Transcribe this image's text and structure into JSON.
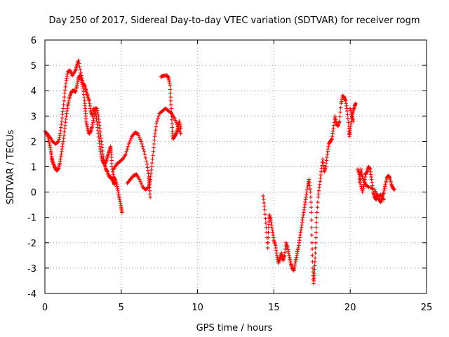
{
  "chart_data": {
    "type": "scatter",
    "title": "Day 250 of 2017, Sidereal Day-to-day VTEC variation (SDTVAR) for receiver rogm",
    "xlabel": "GPS time / hours",
    "ylabel": "SDTVAR / TECUs",
    "xlim": [
      0,
      25
    ],
    "ylim": [
      -4,
      6
    ],
    "grid": true,
    "marker": "+",
    "x_ticks": [
      0,
      5,
      10,
      15,
      20,
      25
    ],
    "x_tick_labels": [
      "0",
      "5",
      "10",
      "15",
      "20",
      "25"
    ],
    "y_ticks": [
      -4,
      -3,
      -2,
      -1,
      0,
      1,
      2,
      3,
      4,
      5,
      6
    ],
    "y_tick_labels": [
      "-4",
      "-3",
      "-2",
      "-1",
      "0",
      "1",
      "2",
      "3",
      "4",
      "5",
      "6"
    ],
    "series": [
      {
        "name": "rogm",
        "color": "#ff0000",
        "segments": [
          [
            [
              0.0,
              2.4
            ],
            [
              0.3,
              2.2
            ],
            [
              0.5,
              2.0
            ],
            [
              0.7,
              1.9
            ],
            [
              0.9,
              2.0
            ],
            [
              1.0,
              2.3
            ],
            [
              1.1,
              2.8
            ],
            [
              1.2,
              3.3
            ],
            [
              1.3,
              3.9
            ],
            [
              1.4,
              4.4
            ],
            [
              1.5,
              4.75
            ],
            [
              1.65,
              4.8
            ],
            [
              1.8,
              4.6
            ],
            [
              2.0,
              4.8
            ],
            [
              2.1,
              5.0
            ],
            [
              2.2,
              5.2
            ],
            [
              2.35,
              4.7
            ],
            [
              2.5,
              4.3
            ],
            [
              2.6,
              4.2
            ],
            [
              2.7,
              4.0
            ],
            [
              2.8,
              3.8
            ],
            [
              2.9,
              3.6
            ],
            [
              3.0,
              3.2
            ],
            [
              3.1,
              3.0
            ],
            [
              3.2,
              3.3
            ],
            [
              3.3,
              3.2
            ],
            [
              3.4,
              2.8
            ],
            [
              3.5,
              2.3
            ],
            [
              3.6,
              1.8
            ],
            [
              3.7,
              1.4
            ],
            [
              3.8,
              1.2
            ],
            [
              3.9,
              1.1
            ],
            [
              4.0,
              1.2
            ],
            [
              4.1,
              1.4
            ],
            [
              4.2,
              1.6
            ],
            [
              4.3,
              1.8
            ],
            [
              4.35,
              1.5
            ],
            [
              4.4,
              1.0
            ],
            [
              4.5,
              0.6
            ],
            [
              4.6,
              0.5
            ],
            [
              4.7,
              0.3
            ],
            [
              4.8,
              0.0
            ],
            [
              4.9,
              -0.3
            ],
            [
              5.0,
              -0.6
            ],
            [
              5.05,
              -0.8
            ]
          ],
          [
            [
              0.1,
              2.35
            ],
            [
              0.2,
              2.2
            ],
            [
              0.3,
              1.9
            ],
            [
              0.4,
              1.6
            ],
            [
              0.45,
              1.35
            ],
            [
              0.5,
              1.2
            ],
            [
              0.6,
              1.05
            ],
            [
              0.7,
              0.9
            ],
            [
              0.8,
              0.85
            ],
            [
              0.9,
              0.95
            ],
            [
              1.0,
              1.2
            ],
            [
              1.1,
              1.6
            ],
            [
              1.2,
              2.0
            ],
            [
              1.3,
              2.5
            ],
            [
              1.4,
              3.0
            ],
            [
              1.5,
              3.4
            ],
            [
              1.6,
              3.7
            ],
            [
              1.7,
              3.9
            ],
            [
              1.8,
              4.0
            ],
            [
              1.9,
              4.0
            ],
            [
              2.0,
              3.95
            ],
            [
              2.1,
              4.2
            ],
            [
              2.2,
              4.5
            ],
            [
              2.3,
              4.6
            ],
            [
              2.4,
              4.4
            ],
            [
              2.5,
              4.1
            ],
            [
              2.6,
              3.6
            ],
            [
              2.65,
              3.2
            ],
            [
              2.7,
              2.8
            ],
            [
              2.8,
              2.5
            ],
            [
              2.9,
              2.3
            ],
            [
              3.0,
              2.4
            ],
            [
              3.1,
              2.6
            ],
            [
              3.2,
              2.9
            ],
            [
              3.3,
              3.3
            ],
            [
              3.4,
              3.3
            ],
            [
              3.5,
              3.0
            ],
            [
              3.6,
              2.5
            ],
            [
              3.7,
              2.0
            ],
            [
              3.8,
              1.5
            ],
            [
              3.9,
              1.1
            ],
            [
              4.0,
              0.9
            ],
            [
              4.1,
              0.8
            ],
            [
              4.2,
              0.6
            ],
            [
              4.3,
              0.6
            ],
            [
              4.4,
              0.5
            ],
            [
              4.5,
              0.4
            ],
            [
              4.55,
              0.3
            ]
          ],
          [
            [
              4.5,
              0.9
            ],
            [
              4.7,
              1.1
            ],
            [
              4.9,
              1.2
            ],
            [
              5.1,
              1.3
            ],
            [
              5.3,
              1.5
            ],
            [
              5.5,
              1.9
            ],
            [
              5.7,
              2.2
            ],
            [
              5.9,
              2.35
            ],
            [
              6.1,
              2.3
            ],
            [
              6.3,
              2.0
            ],
            [
              6.5,
              1.6
            ],
            [
              6.7,
              1.1
            ],
            [
              6.8,
              0.6
            ],
            [
              6.85,
              0.3
            ],
            [
              6.9,
              -0.2
            ]
          ],
          [
            [
              5.4,
              0.35
            ],
            [
              5.6,
              0.5
            ],
            [
              5.8,
              0.65
            ],
            [
              6.0,
              0.7
            ],
            [
              6.2,
              0.5
            ],
            [
              6.4,
              0.2
            ],
            [
              6.6,
              0.1
            ],
            [
              6.8,
              0.2
            ],
            [
              6.9,
              0.5
            ],
            [
              7.0,
              1.0
            ],
            [
              7.1,
              1.6
            ],
            [
              7.2,
              2.2
            ],
            [
              7.3,
              2.7
            ],
            [
              7.5,
              3.1
            ],
            [
              7.7,
              3.2
            ],
            [
              7.9,
              3.3
            ],
            [
              8.1,
              3.2
            ],
            [
              8.3,
              3.1
            ],
            [
              8.5,
              2.9
            ],
            [
              8.7,
              2.6
            ],
            [
              8.9,
              2.3
            ]
          ],
          [
            [
              7.6,
              4.55
            ],
            [
              7.8,
              4.6
            ],
            [
              8.0,
              4.6
            ],
            [
              8.1,
              4.5
            ],
            [
              8.2,
              4.2
            ],
            [
              8.25,
              3.6
            ],
            [
              8.3,
              3.0
            ],
            [
              8.35,
              2.4
            ],
            [
              8.4,
              2.1
            ],
            [
              8.5,
              2.2
            ],
            [
              8.6,
              2.3
            ],
            [
              8.7,
              2.5
            ],
            [
              8.8,
              2.8
            ],
            [
              8.9,
              2.5
            ]
          ],
          [
            [
              14.3,
              -0.15
            ],
            [
              14.4,
              -0.7
            ],
            [
              14.5,
              -1.4
            ],
            [
              14.6,
              -2.2
            ],
            [
              14.65,
              -1.4
            ],
            [
              14.7,
              -0.9
            ],
            [
              14.8,
              -1.1
            ],
            [
              14.9,
              -1.5
            ],
            [
              15.0,
              -1.9
            ],
            [
              15.1,
              -2.1
            ],
            [
              15.2,
              -2.5
            ],
            [
              15.3,
              -2.8
            ],
            [
              15.4,
              -2.6
            ],
            [
              15.5,
              -2.4
            ],
            [
              15.6,
              -2.7
            ],
            [
              15.7,
              -2.5
            ],
            [
              15.8,
              -2.0
            ],
            [
              15.9,
              -2.2
            ],
            [
              16.0,
              -2.5
            ],
            [
              16.1,
              -2.8
            ],
            [
              16.2,
              -3.0
            ],
            [
              16.3,
              -3.1
            ],
            [
              16.4,
              -2.8
            ],
            [
              16.5,
              -2.5
            ],
            [
              16.6,
              -2.2
            ],
            [
              16.7,
              -1.8
            ],
            [
              16.8,
              -1.4
            ],
            [
              16.9,
              -1.0
            ],
            [
              17.0,
              -0.6
            ],
            [
              17.1,
              -0.2
            ],
            [
              17.2,
              0.2
            ],
            [
              17.3,
              0.5
            ],
            [
              17.4,
              0.0
            ],
            [
              17.45,
              -0.8
            ],
            [
              17.5,
              -2.0
            ],
            [
              17.55,
              -3.0
            ],
            [
              17.6,
              -3.6
            ],
            [
              17.65,
              -3.2
            ],
            [
              17.7,
              -2.6
            ],
            [
              17.75,
              -1.8
            ],
            [
              17.8,
              -1.0
            ],
            [
              17.9,
              -0.2
            ],
            [
              18.0,
              0.3
            ],
            [
              18.1,
              0.8
            ],
            [
              18.2,
              1.3
            ],
            [
              18.3,
              0.8
            ],
            [
              18.4,
              1.0
            ],
            [
              18.5,
              1.5
            ],
            [
              18.6,
              1.9
            ],
            [
              18.7,
              2.0
            ],
            [
              18.8,
              2.1
            ],
            [
              18.9,
              2.5
            ],
            [
              19.0,
              3.0
            ],
            [
              19.1,
              2.7
            ],
            [
              19.2,
              2.6
            ],
            [
              19.3,
              2.8
            ],
            [
              19.4,
              3.5
            ],
            [
              19.5,
              3.8
            ],
            [
              19.6,
              3.75
            ],
            [
              19.7,
              3.6
            ],
            [
              19.8,
              3.2
            ],
            [
              19.9,
              2.6
            ],
            [
              19.95,
              2.2
            ],
            [
              20.0,
              2.5
            ],
            [
              20.1,
              2.9
            ],
            [
              20.2,
              3.2
            ],
            [
              20.3,
              3.4
            ],
            [
              20.35,
              3.5
            ]
          ],
          [
            [
              20.0,
              3.3
            ],
            [
              20.1,
              3.0
            ],
            [
              20.2,
              2.8
            ]
          ],
          [
            [
              20.5,
              0.9
            ],
            [
              20.6,
              0.7
            ],
            [
              20.7,
              0.3
            ],
            [
              20.8,
              0.0
            ],
            [
              20.9,
              0.3
            ],
            [
              21.0,
              0.7
            ],
            [
              21.1,
              0.8
            ],
            [
              21.2,
              1.0
            ],
            [
              21.3,
              0.9
            ],
            [
              21.4,
              0.5
            ],
            [
              21.5,
              0.0
            ],
            [
              21.6,
              -0.2
            ],
            [
              21.7,
              -0.3
            ],
            [
              21.8,
              -0.1
            ],
            [
              21.9,
              -0.3
            ],
            [
              22.0,
              -0.4
            ],
            [
              22.1,
              -0.2
            ],
            [
              22.2,
              0.0
            ],
            [
              22.3,
              0.3
            ],
            [
              22.4,
              0.55
            ],
            [
              22.5,
              0.65
            ],
            [
              22.6,
              0.55
            ],
            [
              22.7,
              0.3
            ],
            [
              22.8,
              0.15
            ],
            [
              22.9,
              0.1
            ]
          ],
          [
            [
              20.6,
              0.4
            ],
            [
              20.7,
              0.9
            ],
            [
              20.8,
              0.6
            ],
            [
              21.0,
              0.3
            ],
            [
              21.2,
              0.2
            ],
            [
              21.6,
              0.1
            ],
            [
              21.8,
              -0.2
            ],
            [
              22.0,
              -0.1
            ],
            [
              22.2,
              -0.3
            ]
          ]
        ]
      }
    ]
  }
}
